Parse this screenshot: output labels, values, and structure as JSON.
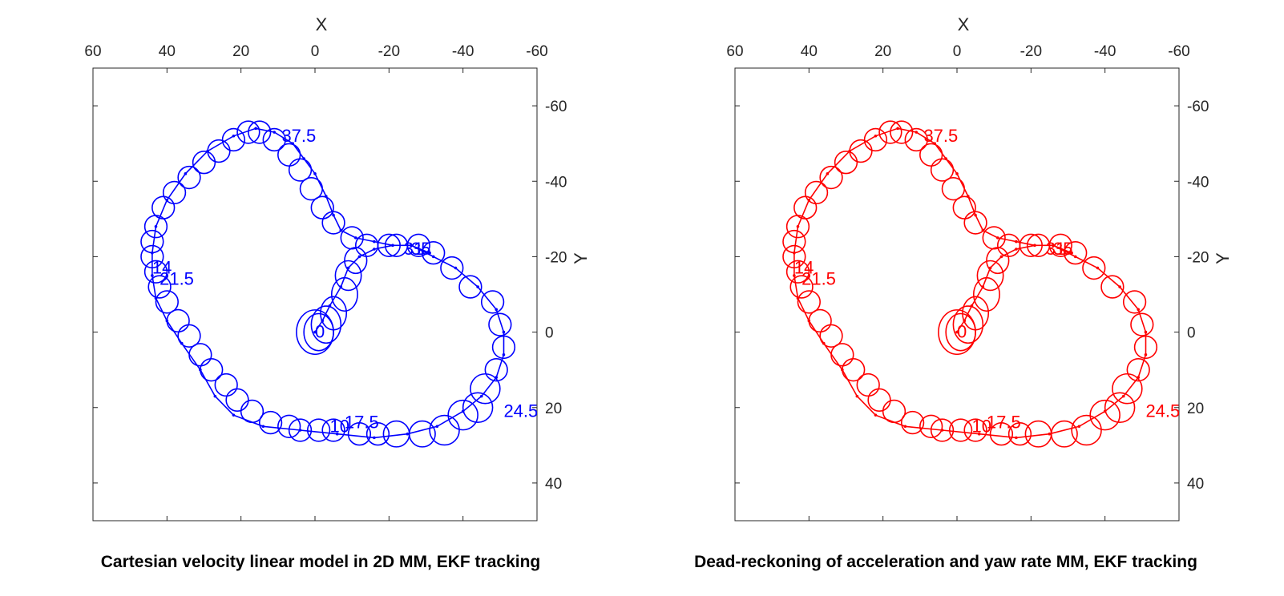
{
  "chart_data": [
    {
      "type": "scatter",
      "title": "Cartesian velocity linear model in 2D MM, EKF tracking",
      "xlabel": "X",
      "ylabel": "Y",
      "xlim": [
        60,
        -60
      ],
      "ylim": [
        -70,
        50
      ],
      "x_reversed": true,
      "y_reversed": true,
      "x_ticks": [
        60,
        40,
        20,
        0,
        -20,
        -40,
        -60
      ],
      "y_ticks": [
        -60,
        -40,
        -20,
        0,
        20,
        40
      ],
      "xaxis_location": "top",
      "yaxis_location": "right",
      "grid": false,
      "color": "#0000ff",
      "track": [
        [
          0,
          0
        ],
        [
          -2,
          -3
        ],
        [
          -4,
          -7
        ],
        [
          -7,
          -12
        ],
        [
          -9,
          -17
        ],
        [
          -12,
          -20
        ],
        [
          -16,
          -22
        ],
        [
          -21,
          -23
        ],
        [
          -26,
          -23
        ],
        [
          -32,
          -20
        ],
        [
          -38,
          -17
        ],
        [
          -44,
          -12
        ],
        [
          -49,
          -6
        ],
        [
          -51,
          0
        ],
        [
          -51,
          6
        ],
        [
          -49,
          12
        ],
        [
          -45,
          17
        ],
        [
          -40,
          21
        ],
        [
          -33,
          25
        ],
        [
          -25,
          27
        ],
        [
          -16,
          28
        ],
        [
          -6,
          27
        ],
        [
          4,
          26
        ],
        [
          14,
          25
        ],
        [
          22,
          22
        ],
        [
          27,
          17
        ],
        [
          31,
          10
        ],
        [
          36,
          3
        ],
        [
          40,
          -3
        ],
        [
          43,
          -9
        ],
        [
          44,
          -15
        ],
        [
          44,
          -21
        ],
        [
          43,
          -28
        ],
        [
          40,
          -35
        ],
        [
          35,
          -42
        ],
        [
          29,
          -48
        ],
        [
          22,
          -52
        ],
        [
          16,
          -54
        ],
        [
          11,
          -53
        ],
        [
          6,
          -50
        ],
        [
          3,
          -46
        ],
        [
          0,
          -42
        ],
        [
          -3,
          -36
        ],
        [
          -5,
          -31
        ],
        [
          -7,
          -27
        ],
        [
          -11,
          -25
        ],
        [
          -16,
          -24
        ],
        [
          -21,
          -23
        ],
        [
          -26,
          -23
        ],
        [
          -31,
          -21
        ]
      ],
      "ellipses": [
        [
          0,
          0,
          5,
          6
        ],
        [
          -1,
          0,
          4,
          5
        ],
        [
          -3,
          -2,
          4,
          5
        ],
        [
          -5,
          -5,
          3.5,
          4.5
        ],
        [
          -8,
          -10,
          3.5,
          4.5
        ],
        [
          -9,
          -15,
          3.5,
          4
        ],
        [
          -11,
          -19,
          3,
          3.5
        ],
        [
          -14,
          -23,
          3,
          3
        ],
        [
          -20,
          -23,
          3,
          3
        ],
        [
          -22,
          -23,
          3,
          3
        ],
        [
          -28,
          -23,
          3,
          3
        ],
        [
          -32,
          -21,
          3,
          3
        ],
        [
          -37,
          -17,
          3,
          3
        ],
        [
          -42,
          -12,
          3,
          3
        ],
        [
          -48,
          -8,
          3,
          3
        ],
        [
          -50,
          -2,
          3,
          3
        ],
        [
          -51,
          4,
          3,
          3
        ],
        [
          -49,
          10,
          3,
          3
        ],
        [
          -46,
          15,
          4,
          4
        ],
        [
          -44,
          20,
          4,
          4
        ],
        [
          -40,
          22,
          4,
          4
        ],
        [
          -35,
          26,
          4,
          4
        ],
        [
          -29,
          27,
          3.5,
          3.5
        ],
        [
          -22,
          27,
          3.5,
          3.5
        ],
        [
          -17,
          27,
          3,
          3
        ],
        [
          -12,
          27,
          3,
          3
        ],
        [
          -5,
          26,
          3,
          3
        ],
        [
          -1,
          26,
          3,
          3
        ],
        [
          4,
          26,
          3,
          3
        ],
        [
          7,
          25,
          3,
          3
        ],
        [
          12,
          24,
          3,
          3
        ],
        [
          17,
          21,
          3,
          3
        ],
        [
          21,
          18,
          3,
          3
        ],
        [
          24,
          14,
          3,
          3
        ],
        [
          28,
          10,
          3,
          3
        ],
        [
          31,
          6,
          3,
          3
        ],
        [
          34,
          1,
          3,
          3
        ],
        [
          37,
          -3,
          3,
          3
        ],
        [
          40,
          -8,
          3,
          3
        ],
        [
          42,
          -12,
          3,
          3
        ],
        [
          43,
          -16,
          3,
          3
        ],
        [
          44,
          -20,
          3,
          3
        ],
        [
          44,
          -24,
          3,
          3
        ],
        [
          43,
          -28,
          3,
          3
        ],
        [
          41,
          -33,
          3,
          3
        ],
        [
          38,
          -37,
          3,
          3
        ],
        [
          34,
          -41,
          3,
          3
        ],
        [
          30,
          -45,
          3,
          3
        ],
        [
          26,
          -48,
          3,
          3
        ],
        [
          22,
          -51,
          3,
          3
        ],
        [
          18,
          -53,
          3,
          3
        ],
        [
          15,
          -53,
          3,
          3
        ],
        [
          11,
          -51,
          3,
          3
        ],
        [
          7,
          -47,
          3,
          3
        ],
        [
          4,
          -43,
          3,
          3
        ],
        [
          1,
          -38,
          3,
          3
        ],
        [
          -2,
          -33,
          3,
          3
        ],
        [
          -5,
          -29,
          3,
          3
        ],
        [
          -10,
          -25,
          3,
          3
        ]
      ],
      "labels": [
        [
          "0",
          0,
          0
        ],
        [
          "24.5",
          -51,
          21
        ],
        [
          "14",
          44,
          -17
        ],
        [
          "21.5",
          42,
          -14
        ],
        [
          "37.5",
          9,
          -52
        ],
        [
          "31",
          -24,
          -22
        ],
        [
          "35",
          -26,
          -22
        ],
        [
          "10",
          -4,
          25
        ],
        [
          "17.5",
          -8,
          24
        ]
      ]
    },
    {
      "type": "scatter",
      "title": "Dead-reckoning of acceleration and yaw rate MM, EKF tracking",
      "xlabel": "X",
      "ylabel": "Y",
      "xlim": [
        60,
        -60
      ],
      "ylim": [
        -70,
        50
      ],
      "x_reversed": true,
      "y_reversed": true,
      "x_ticks": [
        60,
        40,
        20,
        0,
        -20,
        -40,
        -60
      ],
      "y_ticks": [
        -60,
        -40,
        -20,
        0,
        20,
        40
      ],
      "xaxis_location": "top",
      "yaxis_location": "right",
      "grid": false,
      "color": "#ff0000",
      "track": [
        [
          0,
          0
        ],
        [
          -2,
          -3
        ],
        [
          -4,
          -7
        ],
        [
          -7,
          -12
        ],
        [
          -9,
          -17
        ],
        [
          -12,
          -20
        ],
        [
          -16,
          -22
        ],
        [
          -21,
          -23
        ],
        [
          -26,
          -23
        ],
        [
          -32,
          -20
        ],
        [
          -38,
          -17
        ],
        [
          -44,
          -12
        ],
        [
          -49,
          -6
        ],
        [
          -51,
          0
        ],
        [
          -51,
          6
        ],
        [
          -49,
          12
        ],
        [
          -45,
          17
        ],
        [
          -40,
          21
        ],
        [
          -33,
          25
        ],
        [
          -25,
          27
        ],
        [
          -16,
          28
        ],
        [
          -6,
          27
        ],
        [
          4,
          26
        ],
        [
          14,
          25
        ],
        [
          22,
          22
        ],
        [
          27,
          17
        ],
        [
          31,
          10
        ],
        [
          36,
          3
        ],
        [
          40,
          -3
        ],
        [
          43,
          -9
        ],
        [
          44,
          -15
        ],
        [
          44,
          -21
        ],
        [
          43,
          -28
        ],
        [
          40,
          -35
        ],
        [
          35,
          -42
        ],
        [
          29,
          -48
        ],
        [
          22,
          -52
        ],
        [
          16,
          -54
        ],
        [
          11,
          -53
        ],
        [
          6,
          -50
        ],
        [
          3,
          -46
        ],
        [
          0,
          -42
        ],
        [
          -3,
          -36
        ],
        [
          -5,
          -31
        ],
        [
          -7,
          -27
        ],
        [
          -11,
          -25
        ],
        [
          -16,
          -24
        ],
        [
          -21,
          -23
        ],
        [
          -26,
          -23
        ],
        [
          -31,
          -21
        ]
      ],
      "ellipses": [
        [
          0,
          0,
          5,
          6
        ],
        [
          -1,
          0,
          4,
          5
        ],
        [
          -3,
          -2,
          4,
          5
        ],
        [
          -5,
          -5,
          3.5,
          4.5
        ],
        [
          -8,
          -10,
          3.5,
          4.5
        ],
        [
          -9,
          -15,
          3.5,
          4
        ],
        [
          -11,
          -19,
          3,
          3.5
        ],
        [
          -14,
          -23,
          3,
          3
        ],
        [
          -20,
          -23,
          3,
          3
        ],
        [
          -22,
          -23,
          3,
          3
        ],
        [
          -28,
          -23,
          3,
          3
        ],
        [
          -32,
          -21,
          3,
          3
        ],
        [
          -37,
          -17,
          3,
          3
        ],
        [
          -42,
          -12,
          3,
          3
        ],
        [
          -48,
          -8,
          3,
          3
        ],
        [
          -50,
          -2,
          3,
          3
        ],
        [
          -51,
          4,
          3,
          3
        ],
        [
          -49,
          10,
          3,
          3
        ],
        [
          -46,
          15,
          4,
          4
        ],
        [
          -44,
          20,
          4,
          4
        ],
        [
          -40,
          22,
          4,
          4
        ],
        [
          -35,
          26,
          4,
          4
        ],
        [
          -29,
          27,
          3.5,
          3.5
        ],
        [
          -22,
          27,
          3.5,
          3.5
        ],
        [
          -17,
          27,
          3,
          3
        ],
        [
          -12,
          27,
          3,
          3
        ],
        [
          -5,
          26,
          3,
          3
        ],
        [
          -1,
          26,
          3,
          3
        ],
        [
          4,
          26,
          3,
          3
        ],
        [
          7,
          25,
          3,
          3
        ],
        [
          12,
          24,
          3,
          3
        ],
        [
          17,
          21,
          3,
          3
        ],
        [
          21,
          18,
          3,
          3
        ],
        [
          24,
          14,
          3,
          3
        ],
        [
          28,
          10,
          3,
          3
        ],
        [
          31,
          6,
          3,
          3
        ],
        [
          34,
          1,
          3,
          3
        ],
        [
          37,
          -3,
          3,
          3
        ],
        [
          40,
          -8,
          3,
          3
        ],
        [
          42,
          -12,
          3,
          3
        ],
        [
          43,
          -16,
          3,
          3
        ],
        [
          44,
          -20,
          3,
          3
        ],
        [
          44,
          -24,
          3,
          3
        ],
        [
          43,
          -28,
          3,
          3
        ],
        [
          41,
          -33,
          3,
          3
        ],
        [
          38,
          -37,
          3,
          3
        ],
        [
          34,
          -41,
          3,
          3
        ],
        [
          30,
          -45,
          3,
          3
        ],
        [
          26,
          -48,
          3,
          3
        ],
        [
          22,
          -51,
          3,
          3
        ],
        [
          18,
          -53,
          3,
          3
        ],
        [
          15,
          -53,
          3,
          3
        ],
        [
          11,
          -51,
          3,
          3
        ],
        [
          7,
          -47,
          3,
          3
        ],
        [
          4,
          -43,
          3,
          3
        ],
        [
          1,
          -38,
          3,
          3
        ],
        [
          -2,
          -33,
          3,
          3
        ],
        [
          -5,
          -29,
          3,
          3
        ],
        [
          -10,
          -25,
          3,
          3
        ]
      ],
      "labels": [
        [
          "0",
          0,
          0
        ],
        [
          "24.5",
          -51,
          21
        ],
        [
          "14",
          44,
          -17
        ],
        [
          "21.5",
          42,
          -14
        ],
        [
          "37.5",
          9,
          -52
        ],
        [
          "31",
          -24,
          -22
        ],
        [
          "35",
          -26,
          -22
        ],
        [
          "10",
          -4,
          25
        ],
        [
          "17.5",
          -8,
          24
        ]
      ]
    }
  ]
}
